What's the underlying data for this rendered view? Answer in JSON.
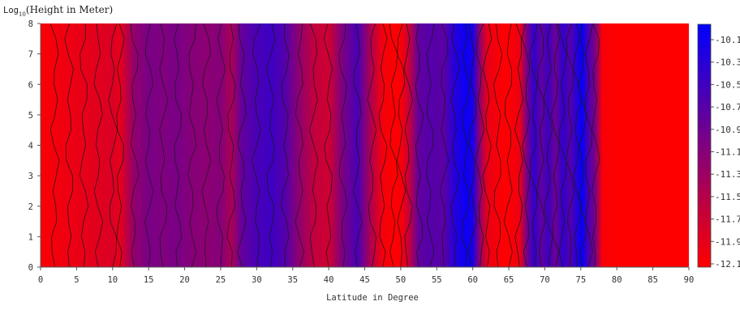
{
  "chart_data": {
    "type": "heatmap",
    "title": "",
    "ylabel_prefix": "Log",
    "ylabel_subscript": "10",
    "ylabel_suffix": "(Height in Meter)",
    "xlabel": "Latitude in Degree",
    "xlim": [
      0,
      90
    ],
    "ylim": [
      0,
      8
    ],
    "x_ticks": [
      0,
      5,
      10,
      15,
      20,
      25,
      30,
      35,
      40,
      45,
      50,
      55,
      60,
      65,
      70,
      75,
      80,
      85,
      90
    ],
    "x_tick_labels": [
      "0",
      "5",
      "10",
      "15",
      "20",
      "25",
      "30",
      "35",
      "40",
      "45",
      "50",
      "55",
      "60",
      "65",
      "70",
      "75",
      "80",
      "85",
      "90"
    ],
    "y_ticks": [
      0,
      1,
      2,
      3,
      4,
      5,
      6,
      7,
      8
    ],
    "y_tick_labels": [
      "0",
      "1",
      "2",
      "3",
      "4",
      "5",
      "6",
      "7",
      "8"
    ],
    "grid": false,
    "colorbar": {
      "placement": "right",
      "low_color": "#ff0000",
      "high_color": "#0000ff",
      "levels": [
        -12.1,
        -11.9,
        -11.7,
        -11.5,
        -11.3,
        -11.1,
        -10.9,
        -10.7,
        -10.5,
        -10.3,
        -10.1
      ],
      "level_labels": [
        "-12.1",
        "-11.9",
        "-11.7",
        "-11.5",
        "-11.3",
        "-11.1",
        "-10.9",
        "-10.7",
        "-10.5",
        "-10.3",
        "-10.1"
      ]
    },
    "value_range": [
      -12.1,
      -10.0
    ],
    "latitude_profile": [
      [
        0,
        -12.05
      ],
      [
        2,
        -12.0
      ],
      [
        4,
        -11.95
      ],
      [
        6,
        -11.9
      ],
      [
        8,
        -11.85
      ],
      [
        10,
        -11.8
      ],
      [
        11,
        -11.9
      ],
      [
        13,
        -11.2
      ],
      [
        15,
        -11.0
      ],
      [
        17,
        -11.05
      ],
      [
        19,
        -11.0
      ],
      [
        21,
        -11.1
      ],
      [
        23,
        -11.15
      ],
      [
        25,
        -11.1
      ],
      [
        26.5,
        -11.4
      ],
      [
        28,
        -10.8
      ],
      [
        30,
        -10.6
      ],
      [
        32,
        -10.5
      ],
      [
        34,
        -10.7
      ],
      [
        36,
        -11.2
      ],
      [
        38,
        -11.6
      ],
      [
        40,
        -11.7
      ],
      [
        42,
        -11.0
      ],
      [
        44,
        -10.6
      ],
      [
        46,
        -11.5
      ],
      [
        47.5,
        -12.0
      ],
      [
        49,
        -12.08
      ],
      [
        50,
        -12.05
      ],
      [
        51,
        -11.7
      ],
      [
        52.5,
        -10.8
      ],
      [
        54,
        -10.7
      ],
      [
        56,
        -10.75
      ],
      [
        57.5,
        -10.3
      ],
      [
        59,
        -10.1
      ],
      [
        60,
        -10.2
      ],
      [
        61,
        -11.2
      ],
      [
        62,
        -11.9
      ],
      [
        63.5,
        -12.05
      ],
      [
        65,
        -12.08
      ],
      [
        66.5,
        -11.95
      ],
      [
        67.5,
        -11.0
      ],
      [
        68.5,
        -10.4
      ],
      [
        69.5,
        -10.8
      ],
      [
        70.5,
        -10.5
      ],
      [
        71.5,
        -10.9
      ],
      [
        72.5,
        -10.4
      ],
      [
        73.5,
        -10.7
      ],
      [
        74.5,
        -10.3
      ],
      [
        75.2,
        -10.05
      ],
      [
        76,
        -10.6
      ],
      [
        77,
        -11.0
      ],
      [
        78,
        -12.05
      ],
      [
        80,
        -12.1
      ],
      [
        85,
        -12.1
      ],
      [
        90,
        -12.1
      ]
    ]
  }
}
